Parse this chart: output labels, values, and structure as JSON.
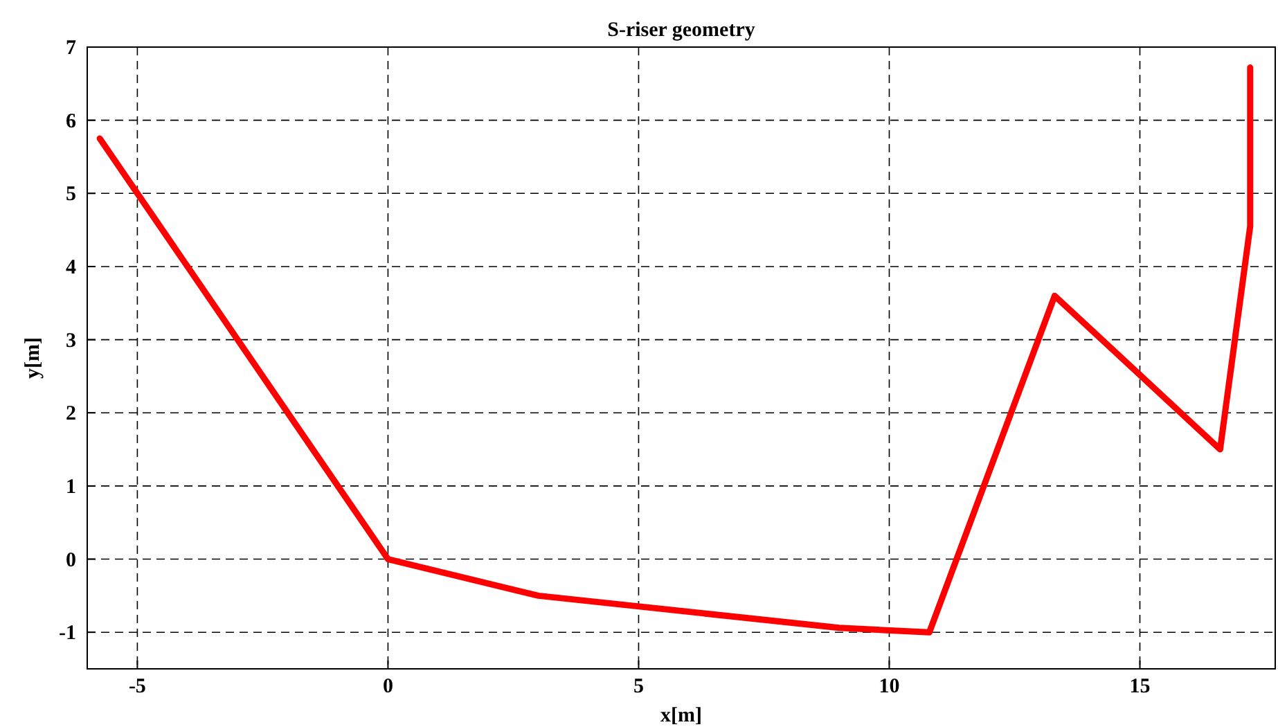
{
  "chart_data": {
    "type": "line",
    "title": "S-riser geometry",
    "xlabel": "x[m]",
    "ylabel": "y[m]",
    "x": [
      -5.75,
      0,
      3,
      9,
      10.8,
      13.3,
      16.6,
      17.2,
      17.2
    ],
    "series": [
      {
        "color": "#ff0000",
        "values": [
          5.75,
          0,
          -0.5,
          -0.94,
          -1,
          3.6,
          1.5,
          4.55,
          6.72
        ]
      }
    ],
    "xlim": [
      -6,
      17.7
    ],
    "xticks": [
      -5,
      0,
      5,
      10,
      15
    ],
    "ylim": [
      -1.5,
      7
    ],
    "yticks": [
      -1,
      0,
      1,
      2,
      3,
      4,
      5,
      6,
      7
    ],
    "grid": true,
    "marker": "none",
    "line_style": "solid"
  }
}
